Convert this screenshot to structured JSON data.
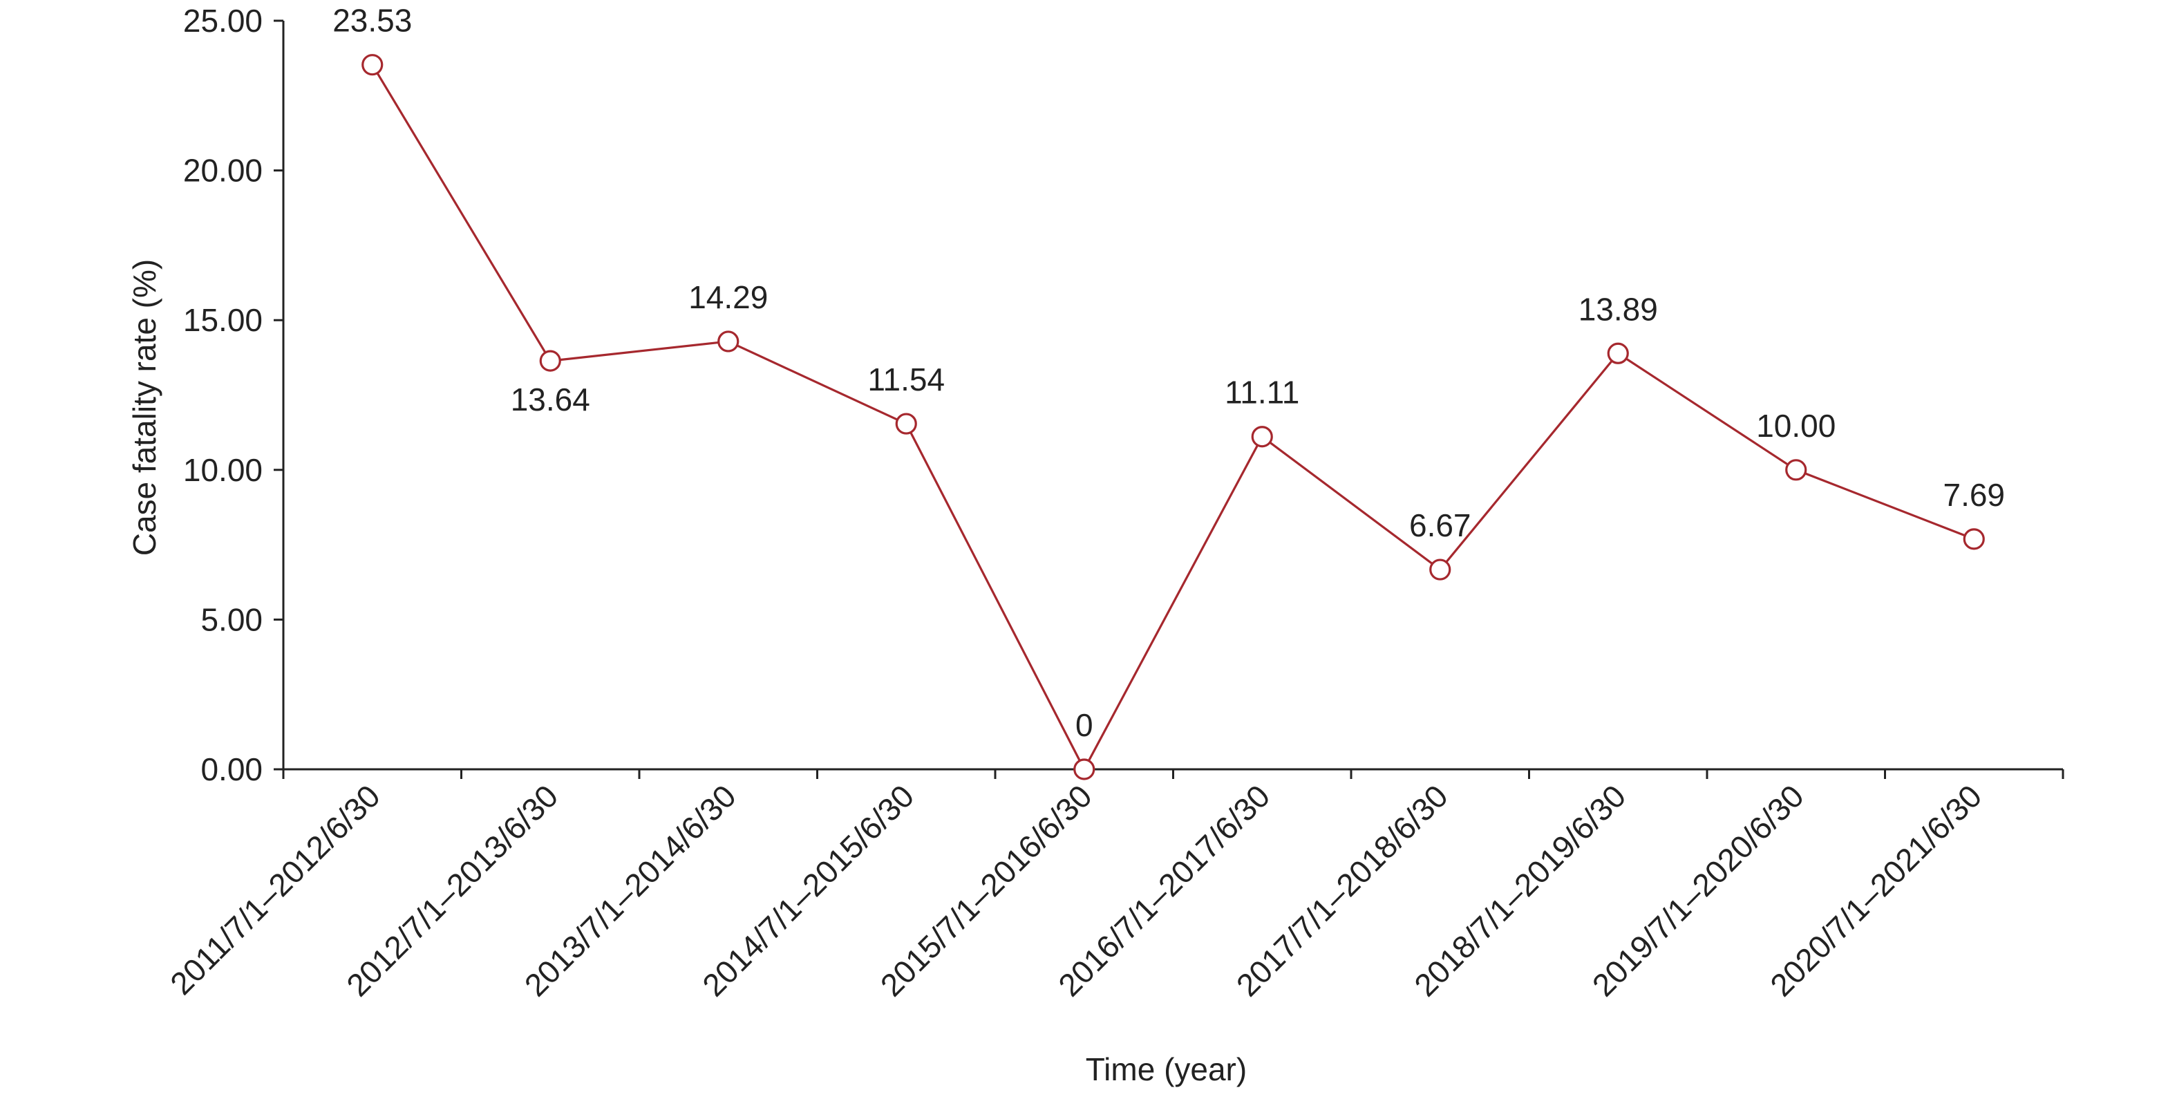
{
  "chart_data": {
    "type": "line",
    "title": "",
    "xlabel": "Time (year)",
    "ylabel": "Case fatality rate (%)",
    "categories": [
      "2011/7/1–2012/6/30",
      "2012/7/1–2013/6/30",
      "2013/7/1–2014/6/30",
      "2014/7/1–2015/6/30",
      "2015/7/1–2016/6/30",
      "2016/7/1–2017/6/30",
      "2017/7/1–2018/6/30",
      "2018/7/1–2019/6/30",
      "2019/7/1–2020/6/30",
      "2020/7/1–2021/6/30"
    ],
    "series": [
      {
        "values": [
          23.53,
          13.64,
          14.29,
          11.54,
          0,
          11.11,
          6.67,
          13.89,
          10.0,
          7.69
        ],
        "labels": [
          "23.53",
          "13.64",
          "14.29",
          "11.54",
          "0",
          "11.11",
          "6.67",
          "13.89",
          "10.00",
          "7.69"
        ],
        "label_positions": [
          "above",
          "below",
          "above",
          "above",
          "above",
          "above",
          "above",
          "above",
          "above",
          "above"
        ],
        "color": "#a6282e",
        "marker": "open-circle"
      }
    ],
    "ylim": [
      0,
      25
    ],
    "yticks": [
      0,
      5,
      10,
      15,
      20,
      25
    ],
    "ytick_labels": [
      "0.00",
      "5.00",
      "10.00",
      "15.00",
      "20.00",
      "25.00"
    ],
    "grid": false,
    "axis_color": "#222222"
  }
}
